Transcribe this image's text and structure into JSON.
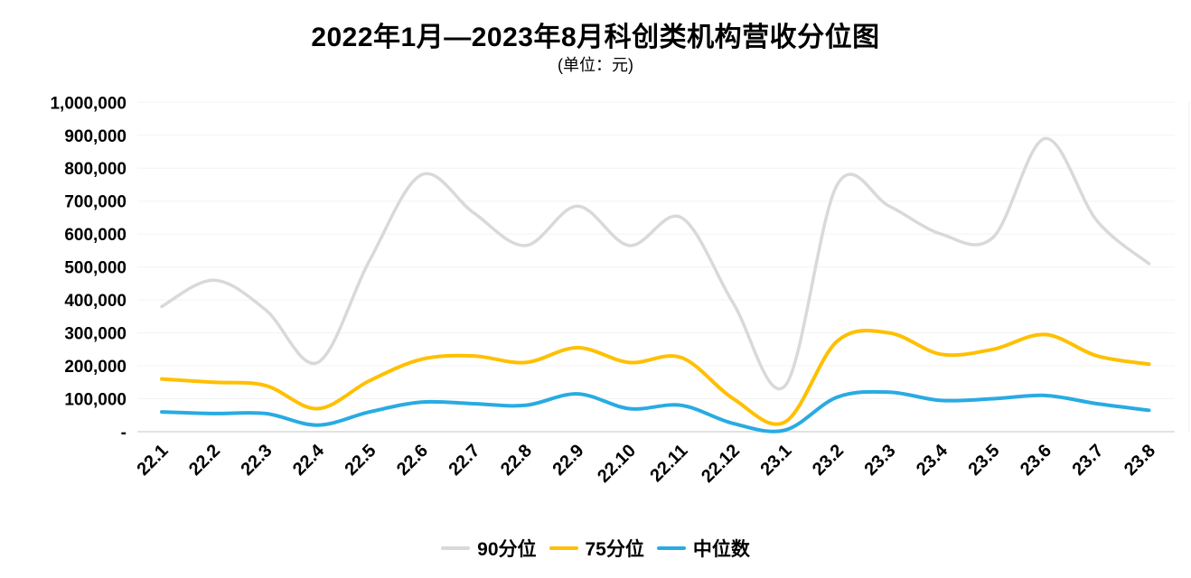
{
  "title": "2022年1月—2023年8月科创类机构营收分位图",
  "subtitle": "(单位：元)",
  "y_axis": {
    "tick_labels": [
      "1,000,000",
      "900,000",
      "800,000",
      "700,000",
      "600,000",
      "500,000",
      "400,000",
      "300,000",
      "200,000",
      "100,000",
      "-"
    ]
  },
  "legend": [
    {
      "label": "90分位",
      "color": "#d9d9d9"
    },
    {
      "label": "75分位",
      "color": "#ffc000"
    },
    {
      "label": "中位数",
      "color": "#29abe2"
    }
  ],
  "colors": {
    "gridline": "#f3f3f3",
    "axis": "#d9d9d9",
    "label": "#000000"
  },
  "chart_data": {
    "type": "line",
    "smooth": true,
    "title": "2022年1月—2023年8月科创类机构营收分位图",
    "unit": "元",
    "ylim": [
      0,
      1000000
    ],
    "y_step": 100000,
    "grid": true,
    "legend_position": "bottom",
    "categories": [
      "22.1",
      "22.2",
      "22.3",
      "22.4",
      "22.5",
      "22.6",
      "22.7",
      "22.8",
      "22.9",
      "22.10",
      "22.11",
      "22.12",
      "23.1",
      "23.2",
      "23.3",
      "23.4",
      "23.5",
      "23.6",
      "23.7",
      "23.8"
    ],
    "series": [
      {
        "name": "90分位",
        "color": "#d9d9d9",
        "width": 3.5,
        "values": [
          380000,
          460000,
          370000,
          210000,
          520000,
          780000,
          665000,
          565000,
          685000,
          565000,
          650000,
          390000,
          140000,
          750000,
          685000,
          600000,
          590000,
          890000,
          640000,
          510000
        ]
      },
      {
        "name": "75分位",
        "color": "#ffc000",
        "width": 4,
        "values": [
          160000,
          150000,
          140000,
          70000,
          155000,
          220000,
          230000,
          210000,
          255000,
          210000,
          225000,
          100000,
          30000,
          275000,
          300000,
          235000,
          250000,
          295000,
          230000,
          205000
        ]
      },
      {
        "name": "中位数",
        "color": "#29abe2",
        "width": 4,
        "values": [
          60000,
          55000,
          55000,
          20000,
          60000,
          90000,
          85000,
          80000,
          115000,
          70000,
          80000,
          25000,
          5000,
          105000,
          120000,
          95000,
          100000,
          110000,
          85000,
          65000
        ]
      }
    ]
  }
}
